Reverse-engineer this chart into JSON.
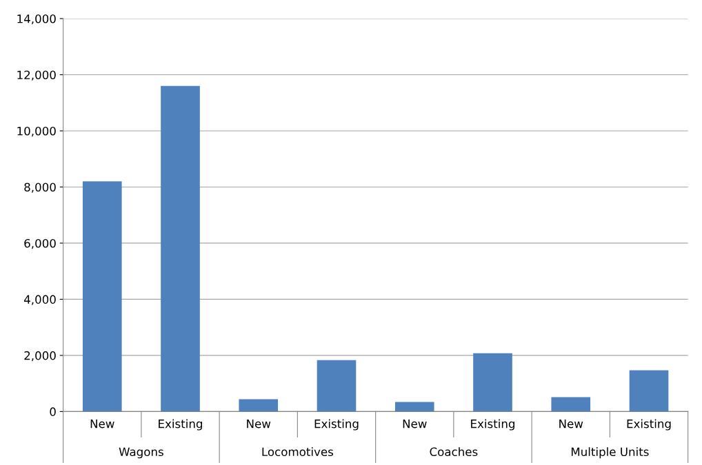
{
  "chart_data": {
    "type": "bar",
    "categories": [
      "New",
      "Existing",
      "New",
      "Existing",
      "New",
      "Existing",
      "New",
      "Existing"
    ],
    "values": [
      8200,
      11600,
      440,
      1830,
      340,
      2080,
      510,
      1470
    ],
    "color": "#4f81bd",
    "ylim": [
      0,
      14000
    ],
    "yticks": [
      0,
      {
        "value": 2000,
        "label": "2,000"
      },
      {
        "value": 4000,
        "label": "4,000"
      },
      {
        "value": 6000,
        "label": "6,000"
      },
      {
        "value": 8000,
        "label": "8,000"
      },
      {
        "value": 10000,
        "label": "10,000"
      },
      {
        "value": 12000,
        "label": "12,000"
      },
      {
        "value": 14000,
        "label": "14,000"
      }
    ],
    "grid": "y",
    "annotations": [
      "Wagons",
      "Locomotives",
      "Coaches",
      "Multiple Units"
    ]
  }
}
